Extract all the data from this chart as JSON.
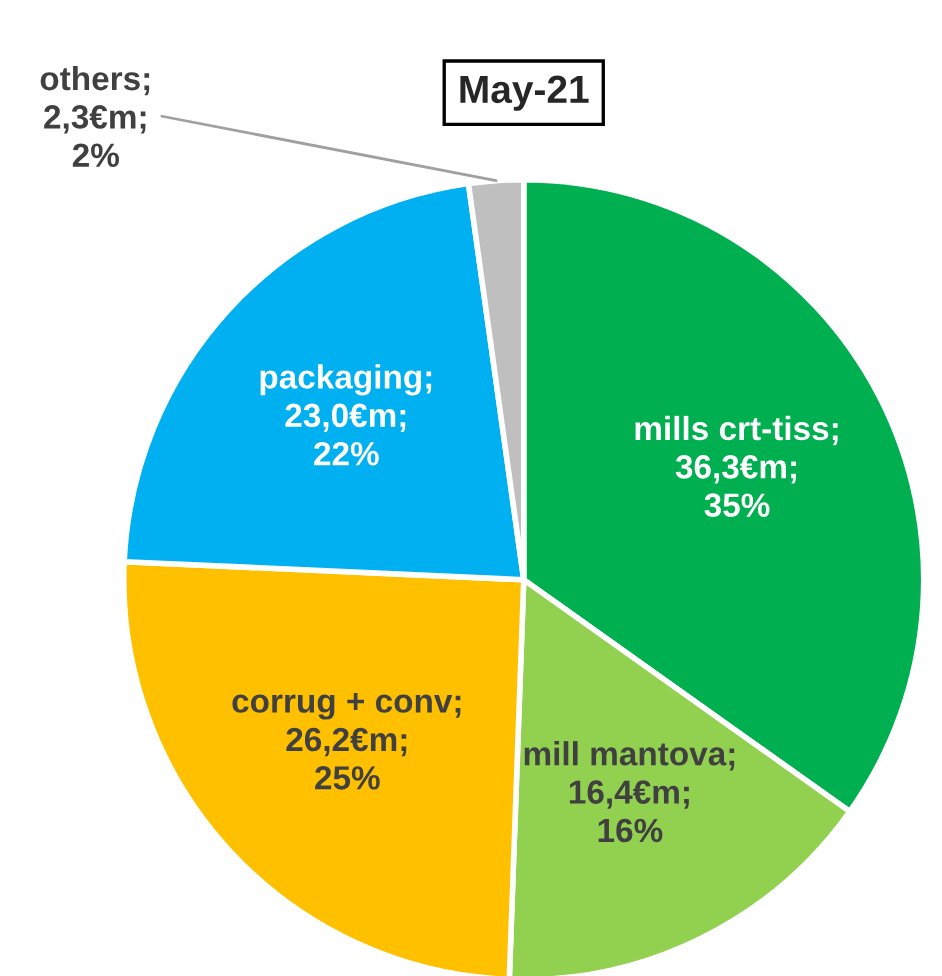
{
  "chart_data": {
    "type": "pie",
    "title": "May-21",
    "categories": [
      "mills crt-tiss",
      "mill mantova",
      "corrug + conv",
      "packaging",
      "others"
    ],
    "values": [
      36.3,
      16.4,
      26.2,
      23.0,
      2.3
    ],
    "value_labels": [
      ";\n36,3€m;\n35%",
      ";\n16,4€m;\n16%",
      ";\n26,2€m;\n25%",
      ";\n23,0€m;\n22%",
      ";\n2,3€m;\n2%"
    ],
    "colors": [
      "#00b050",
      "#92d050",
      "#ffc000",
      "#00b0f0",
      "#bfbfbf"
    ]
  }
}
